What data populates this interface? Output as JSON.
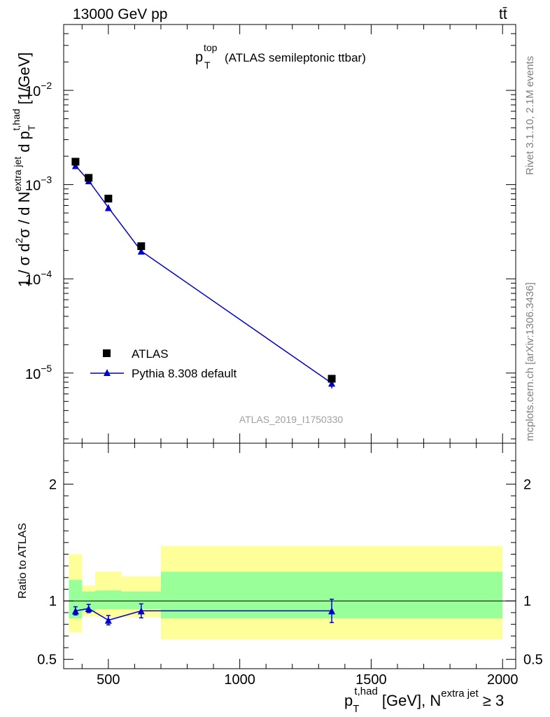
{
  "header": {
    "beam_label": "13000 GeV pp",
    "process_label": "tt̄"
  },
  "side_labels": {
    "rivet": "Rivet 3.1.10,  2.1M events",
    "mcplots": "mcplots.cern.ch [arXiv:1306.3436]"
  },
  "chart_data": [
    {
      "type": "scatter",
      "title": "(ATLAS semileptonic ttbar)",
      "title_symbol": "p",
      "title_sup": "top",
      "title_sub": "T",
      "watermark": "ATLAS_2019_I1750330",
      "ylabel": {
        "prefix": "1 / σ d",
        "sup1": "2",
        "mid": "σ /  d N",
        "sup2": "extra jet",
        "mid2": " d p",
        "sub3": "T",
        "sup3": "t,had",
        "unit": " [1/GeV]"
      },
      "yscale": "log",
      "ylim": [
        1.8e-06,
        0.05
      ],
      "y_tick_labels": [
        {
          "value": 1e-05,
          "mantissa": "10",
          "exp": "−5"
        },
        {
          "value": 0.0001,
          "mantissa": "10",
          "exp": "−4"
        },
        {
          "value": 0.001,
          "mantissa": "10",
          "exp": "−3"
        },
        {
          "value": 0.01,
          "mantissa": "10",
          "exp": "−2"
        }
      ],
      "xlim": [
        330,
        2050
      ],
      "series": [
        {
          "name": "ATLAS",
          "marker": "square",
          "color": "#000000",
          "x": [
            375,
            425,
            500,
            625,
            1350
          ],
          "y": [
            0.00175,
            0.00118,
            0.00071,
            0.000222,
            8.7e-06
          ]
        },
        {
          "name": "Pythia 8.308 default",
          "marker": "triangle",
          "color": "#0000cc",
          "x": [
            375,
            425,
            500,
            625,
            1350
          ],
          "y": [
            0.00159,
            0.0011,
            0.00057,
            0.000197,
            7.8e-06
          ],
          "yerr": [
            4e-05,
            3e-05,
            2e-05,
            8e-06,
            8.5e-10
          ]
        }
      ],
      "legend_position": "lower-left"
    },
    {
      "type": "line",
      "ylabel": "Ratio to ATLAS",
      "ylim": [
        0.42,
        2.35
      ],
      "y_ticks": [
        0.5,
        1,
        2
      ],
      "y_tick_labels": [
        "0.5",
        "1",
        "2"
      ],
      "xlim": [
        330,
        2050
      ],
      "x_ticks": [
        500,
        1000,
        1500,
        2000
      ],
      "x_tick_labels": [
        "500",
        "1000",
        "1500",
        "2000"
      ],
      "xlabel": {
        "base": "p",
        "sub": "T",
        "sup": "t,had",
        "rest": " [GeV], N",
        "sup2": "extra jet",
        "tail": " ≥ 3"
      },
      "reference_line": 1,
      "bands": [
        {
          "x0": 350,
          "x1": 400,
          "yellow": [
            0.73,
            1.4
          ],
          "green": [
            0.85,
            1.18
          ]
        },
        {
          "x0": 400,
          "x1": 450,
          "yellow": [
            0.87,
            1.13
          ],
          "green": [
            0.91,
            1.08
          ]
        },
        {
          "x0": 450,
          "x1": 550,
          "yellow": [
            0.86,
            1.25
          ],
          "green": [
            0.93,
            1.09
          ]
        },
        {
          "x0": 550,
          "x1": 700,
          "yellow": [
            0.86,
            1.21
          ],
          "green": [
            0.93,
            1.08
          ]
        },
        {
          "x0": 700,
          "x1": 2000,
          "yellow": [
            0.67,
            1.47
          ],
          "green": [
            0.85,
            1.25
          ]
        }
      ],
      "band_colors": {
        "yellow": "#ffff99",
        "green": "#99ff99"
      },
      "series": [
        {
          "name": "Pythia 8.308 default",
          "color": "#0000cc",
          "x": [
            375,
            425,
            500,
            625,
            1350
          ],
          "y": [
            0.915,
            0.935,
            0.835,
            0.915,
            0.915
          ],
          "yerr": [
            0.035,
            0.035,
            0.04,
            0.06,
            0.1
          ]
        }
      ]
    }
  ]
}
